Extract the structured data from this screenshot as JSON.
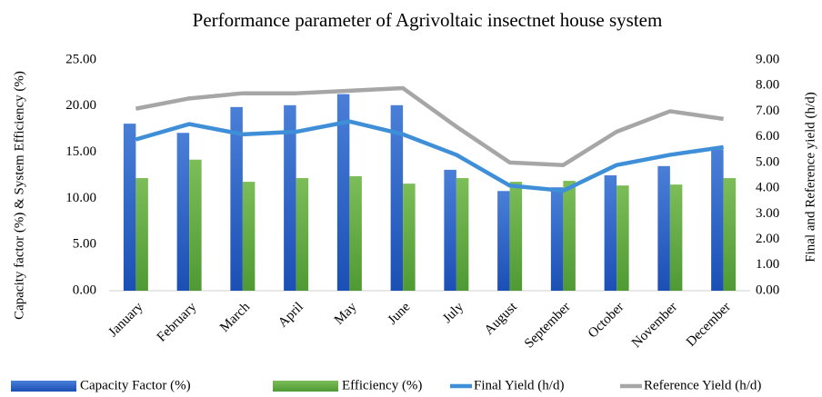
{
  "chart_data": {
    "type": "bar_line",
    "title": "Performance parameter of Agrivoltaic insectnet house system",
    "y_label": "Capacity factor (%)  & System Efficiency (%)",
    "y2_label": "Final and Reference yield (h/d)",
    "categories": [
      "January",
      "February",
      "March",
      "April",
      "May",
      "June",
      "July",
      "August",
      "September",
      "October",
      "November",
      "December"
    ],
    "series": [
      {
        "name": "Capacity Factor (%)",
        "type": "bar",
        "color": "#2e63c9",
        "values": [
          18.1,
          17.1,
          19.9,
          20.1,
          21.3,
          20.1,
          13.1,
          10.8,
          11.2,
          12.5,
          13.5,
          15.3
        ]
      },
      {
        "name": "Efficiency (%)",
        "type": "bar",
        "color": "#6aaa46",
        "values": [
          12.2,
          14.2,
          11.8,
          12.2,
          12.4,
          11.6,
          12.2,
          11.8,
          11.9,
          11.4,
          11.5,
          12.2
        ]
      },
      {
        "name": "Final Yield (h/d)",
        "type": "line",
        "axis": "y2",
        "color": "#3e8fd8",
        "values": [
          5.9,
          6.5,
          6.1,
          6.2,
          6.6,
          6.1,
          5.3,
          4.1,
          3.9,
          4.9,
          5.3,
          5.6
        ]
      },
      {
        "name": "Reference Yield (h/d)",
        "type": "line",
        "axis": "y2",
        "color": "#a6a6a6",
        "values": [
          7.1,
          7.5,
          7.7,
          7.7,
          7.8,
          7.9,
          6.4,
          5.0,
          4.9,
          6.2,
          7.0,
          6.7
        ]
      }
    ],
    "ylim": [
      0,
      25
    ],
    "yticks": [
      {
        "value": 0,
        "label": "0.00"
      },
      {
        "value": 5,
        "label": "5.00"
      },
      {
        "value": 10,
        "label": "10.00"
      },
      {
        "value": 15,
        "label": "15.00"
      },
      {
        "value": 20,
        "label": "20.00"
      },
      {
        "value": 25,
        "label": "25.00"
      }
    ],
    "y2lim": [
      0,
      9
    ],
    "y2ticks": [
      {
        "value": 0,
        "label": "0.00"
      },
      {
        "value": 1,
        "label": "1.00"
      },
      {
        "value": 2,
        "label": "2.00"
      },
      {
        "value": 3,
        "label": "3.00"
      },
      {
        "value": 4,
        "label": "4.00"
      },
      {
        "value": 5,
        "label": "5.00"
      },
      {
        "value": 6,
        "label": "6.00"
      },
      {
        "value": 7,
        "label": "7.00"
      },
      {
        "value": 8,
        "label": "8.00"
      },
      {
        "value": 9,
        "label": "9.00"
      }
    ],
    "legend": "bottom"
  }
}
